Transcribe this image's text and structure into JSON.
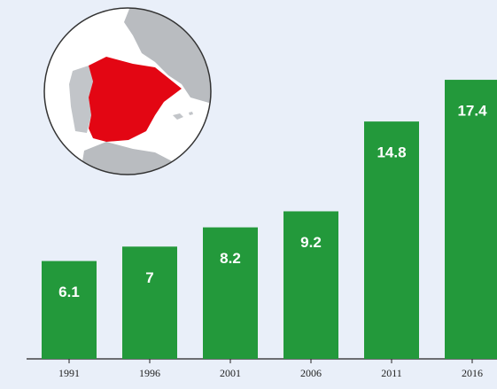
{
  "chart_data": {
    "type": "bar",
    "categories": [
      "1991",
      "1996",
      "2001",
      "2006",
      "2011",
      "2016"
    ],
    "values": [
      6.1,
      7.0,
      8.2,
      9.2,
      14.8,
      17.4
    ],
    "color": "#23993b"
  }
}
